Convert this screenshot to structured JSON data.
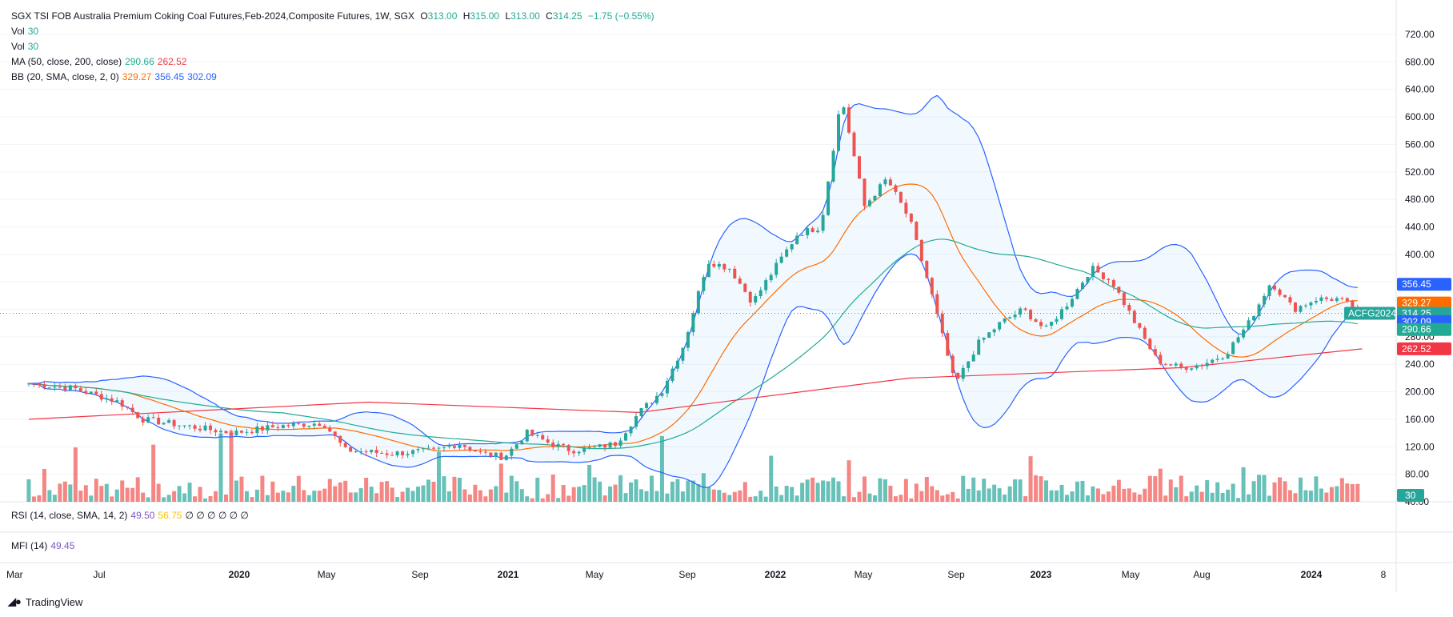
{
  "header": {
    "symbol": "SGX TSI FOB Australia Premium Coking Coal Futures,Feb-2024,Composite Futures, 1W, SGX",
    "open_label": "O",
    "open": "313.00",
    "high_label": "H",
    "high": "315.00",
    "low_label": "L",
    "low": "313.00",
    "close_label": "C",
    "close": "314.25",
    "change": "−1.75 (−0.55%)",
    "vol1_label": "Vol",
    "vol1_value": "30",
    "vol2_label": "Vol",
    "vol2_value": "30",
    "ma_label": "MA (50, close, 200, close)",
    "ma_50": "290.66",
    "ma_200": "262.52",
    "bb_label": "BB (20, SMA, close, 2, 0)",
    "bb_basis": "329.27",
    "bb_upper": "356.45",
    "bb_lower": "302.09"
  },
  "rsi": {
    "label": "RSI (14, close, SMA, 14, 2)",
    "value": "49.50",
    "ma": "56.75",
    "extra": "∅ ∅ ∅ ∅ ∅ ∅"
  },
  "mfi": {
    "label": "MFI (14)",
    "value": "49.45"
  },
  "badges": {
    "bb_upper": "356.45",
    "bb_basis": "329.27",
    "symbol": "ACFG2024",
    "last": "314.25",
    "bb_lower": "302.09",
    "ma_50": "290.66",
    "ma_200": "262.52",
    "volume": "30"
  },
  "footer": {
    "brand": "TradingView"
  },
  "colors": {
    "up": "#26a69a",
    "down": "#ef5350",
    "ma50": "#22ab94",
    "ma200": "#f23645",
    "bb_basis": "#ff6d00",
    "bb_band": "#2962ff",
    "rsi": "#7e57c2",
    "rsi_ma": "#f7c600"
  },
  "chart_data": {
    "type": "candlestick",
    "y_axis": {
      "ticks": [
        40,
        80,
        120,
        160,
        200,
        240,
        280,
        320,
        360,
        400,
        440,
        480,
        520,
        560,
        600,
        640,
        680,
        720
      ]
    },
    "x_axis": {
      "labels": [
        "Mar",
        "Jul",
        "2020",
        "May",
        "Sep",
        "2021",
        "May",
        "Sep",
        "2022",
        "May",
        "Sep",
        "2023",
        "May",
        "Aug",
        "2024",
        "8"
      ]
    },
    "close_path": [
      [
        "2019-03",
        212
      ],
      [
        "2019-05",
        205
      ],
      [
        "2019-07",
        185
      ],
      [
        "2019-08",
        160
      ],
      [
        "2019-10",
        150
      ],
      [
        "2019-12",
        140
      ],
      [
        "2020-02",
        150
      ],
      [
        "2020-04",
        155
      ],
      [
        "2020-05",
        115
      ],
      [
        "2020-07",
        110
      ],
      [
        "2020-09",
        115
      ],
      [
        "2020-10",
        125
      ],
      [
        "2020-11",
        110
      ],
      [
        "2020-12",
        105
      ],
      [
        "2021-01",
        140
      ],
      [
        "2021-02",
        125
      ],
      [
        "2021-03",
        115
      ],
      [
        "2021-04",
        118
      ],
      [
        "2021-05",
        125
      ],
      [
        "2021-06",
        170
      ],
      [
        "2021-07",
        200
      ],
      [
        "2021-08",
        270
      ],
      [
        "2021-09",
        390
      ],
      [
        "2021-10",
        380
      ],
      [
        "2021-11",
        330
      ],
      [
        "2021-12",
        380
      ],
      [
        "2022-01",
        430
      ],
      [
        "2022-02",
        440
      ],
      [
        "2022-03",
        630
      ],
      [
        "2022-04",
        470
      ],
      [
        "2022-05",
        510
      ],
      [
        "2022-06",
        450
      ],
      [
        "2022-07",
        340
      ],
      [
        "2022-08",
        210
      ],
      [
        "2022-09",
        270
      ],
      [
        "2022-10",
        300
      ],
      [
        "2022-11",
        320
      ],
      [
        "2022-12",
        290
      ],
      [
        "2023-01",
        330
      ],
      [
        "2023-02",
        380
      ],
      [
        "2023-03",
        360
      ],
      [
        "2023-04",
        300
      ],
      [
        "2023-05",
        245
      ],
      [
        "2023-06",
        235
      ],
      [
        "2023-07",
        240
      ],
      [
        "2023-08",
        255
      ],
      [
        "2023-09",
        300
      ],
      [
        "2023-10",
        360
      ],
      [
        "2023-11",
        320
      ],
      [
        "2023-12",
        335
      ],
      [
        "2024-01",
        335
      ],
      [
        "2024-02",
        314
      ]
    ],
    "ma200_path": [
      [
        "2019-03",
        160
      ],
      [
        "2020-06",
        185
      ],
      [
        "2021-06",
        170
      ],
      [
        "2022-06",
        220
      ],
      [
        "2023-06",
        235
      ],
      [
        "2024-02",
        262.52
      ]
    ],
    "last_price": 314.25,
    "indicators": {
      "MA50": 290.66,
      "MA200": 262.52,
      "BB_upper": 356.45,
      "BB_basis": 329.27,
      "BB_lower": 302.09,
      "RSI": 49.5,
      "RSI_MA": 56.75,
      "MFI": 49.45,
      "Volume": 30
    }
  }
}
